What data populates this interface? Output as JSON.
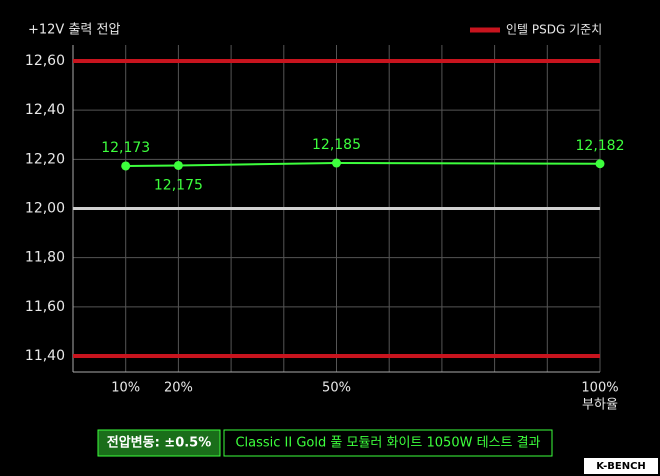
{
  "chart_data": {
    "type": "line",
    "y_axis_label": "+12V 출력 전압",
    "x_axis_label": "부하율",
    "x": [
      10,
      20,
      50,
      100
    ],
    "series": [
      {
        "name": "Classic II Gold 풀 모듈러 화이트 1050W",
        "color": "#3dff3d",
        "values": [
          12.173,
          12.175,
          12.185,
          12.182
        ],
        "value_labels": [
          "12,173",
          "12,175",
          "12,185",
          "12,182"
        ]
      }
    ],
    "xlim": [
      0,
      100
    ],
    "xticks": [
      {
        "value": 10,
        "label": "10%"
      },
      {
        "value": 20,
        "label": "20%"
      },
      {
        "value": 50,
        "label": "50%"
      },
      {
        "value": 100,
        "label": "100%"
      }
    ],
    "xgrid": [
      0,
      10,
      20,
      30,
      40,
      50,
      60,
      70,
      80,
      90,
      100
    ],
    "ylim": [
      11.335,
      12.665
    ],
    "yticks": [
      {
        "value": 11.4,
        "label": "11,40"
      },
      {
        "value": 11.6,
        "label": "11,60"
      },
      {
        "value": 11.8,
        "label": "11,80"
      },
      {
        "value": 12.0,
        "label": "12,00"
      },
      {
        "value": 12.2,
        "label": "12,20"
      },
      {
        "value": 12.4,
        "label": "12,40"
      },
      {
        "value": 12.6,
        "label": "12,60"
      }
    ],
    "grid": true,
    "baseline": {
      "value": 12.0,
      "color": "#d0d0d0"
    },
    "reference": {
      "name": "인텔 PSDG 기준치",
      "color": "#c8141e",
      "values": [
        12.6,
        11.4
      ]
    },
    "legend": "top-right",
    "footer": {
      "note": "전압변동: ±0.5%",
      "caption": "Classic II Gold 풀 모듈러 화이트 1050W 테스트 결과"
    },
    "logo": "K-BENCH"
  }
}
